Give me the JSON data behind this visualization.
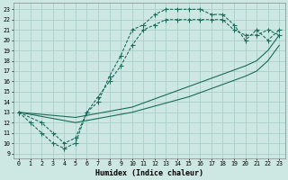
{
  "bg_color": "#cde8e2",
  "grid_color": "#aacfc8",
  "line_color": "#1a6b5a",
  "xlabel": "Humidex (Indice chaleur)",
  "ylim": [
    8.5,
    23.6
  ],
  "xlim": [
    -0.5,
    23.5
  ],
  "ytick_vals": [
    9,
    10,
    11,
    12,
    13,
    14,
    15,
    16,
    17,
    18,
    19,
    20,
    21,
    22,
    23
  ],
  "xtick_vals": [
    0,
    1,
    2,
    3,
    4,
    5,
    6,
    7,
    8,
    9,
    10,
    11,
    12,
    13,
    14,
    15,
    16,
    17,
    18,
    19,
    20,
    21,
    22,
    23
  ],
  "line1_x": [
    0,
    1,
    2,
    3,
    4,
    5,
    6,
    7,
    8,
    9,
    10,
    11,
    12,
    13,
    14,
    15,
    16,
    17,
    18,
    19,
    20,
    21,
    22,
    23
  ],
  "line1_y": [
    13,
    12,
    11,
    10,
    9.5,
    10,
    13,
    14,
    16.5,
    18.5,
    21,
    21.5,
    22.5,
    23,
    23,
    23,
    23,
    22.5,
    22.5,
    21.5,
    20,
    21,
    20,
    21
  ],
  "line2_x": [
    0,
    2,
    3,
    4,
    5,
    6,
    7,
    8,
    9,
    10,
    11,
    12,
    13,
    14,
    15,
    16,
    17,
    18,
    19,
    20,
    21,
    22,
    23
  ],
  "line2_y": [
    13,
    12,
    11,
    10,
    10.5,
    13,
    14.5,
    16,
    17.5,
    19.5,
    21,
    21.5,
    22,
    22,
    22,
    22,
    22,
    22,
    21,
    20.5,
    20.5,
    21,
    20.5
  ],
  "line3_x": [
    0,
    5,
    10,
    15,
    20,
    21,
    22,
    23
  ],
  "line3_y": [
    13,
    12.5,
    13.5,
    15.5,
    17.5,
    18,
    19,
    20.5
  ],
  "line4_x": [
    0,
    5,
    10,
    15,
    20,
    21,
    22,
    23
  ],
  "line4_y": [
    13,
    12,
    13,
    14.5,
    16.5,
    17,
    18,
    19.5
  ]
}
